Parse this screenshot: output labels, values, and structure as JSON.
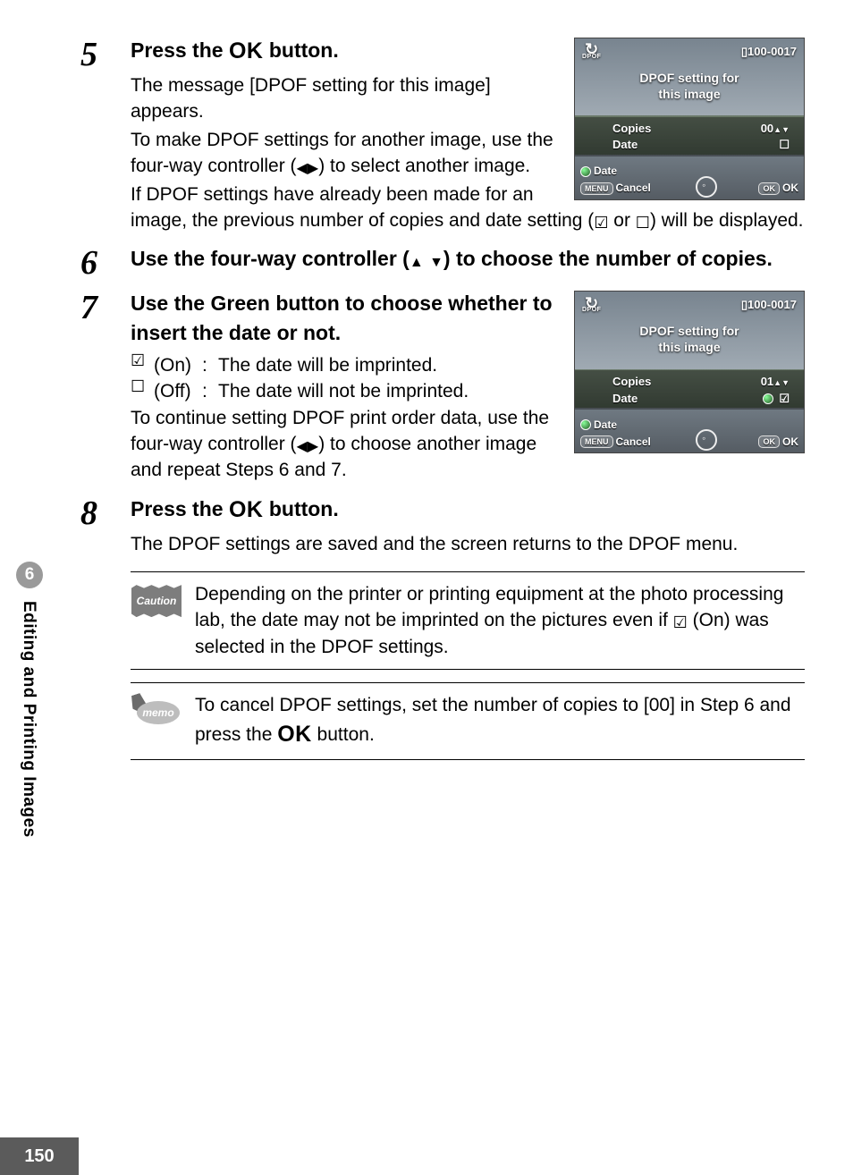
{
  "page_number": "150",
  "chapter": {
    "number": "6",
    "title": "Editing and Printing Images"
  },
  "glyphs": {
    "tri_left": "◀",
    "tri_right": "▶",
    "tri_up": "▲",
    "tri_down": "▼",
    "check_on": "☑",
    "check_off": "☐",
    "card": "▯"
  },
  "steps": {
    "s5": {
      "num": "5",
      "head_a": "Press the ",
      "head_ok": "OK",
      "head_b": " button.",
      "p1": "The message [DPOF setting for this image] appears.",
      "p2a": "To make DPOF settings for another image, use the four-way controller (",
      "p2b": ") to select another image.",
      "p3a": "If DPOF settings have already been made for an image, the previous number of copies and date setting (",
      "p3b": " or ",
      "p3c": ") will be displayed."
    },
    "s6": {
      "num": "6",
      "head_a": "Use the four-way controller (",
      "head_b": ") to choose the number of copies."
    },
    "s7": {
      "num": "7",
      "head": "Use the Green button to choose whether to insert the date or not.",
      "on_term": "(On)",
      "on_desc": "The date will be imprinted.",
      "off_term": "(Off)",
      "off_desc": "The date will not be imprinted.",
      "p1a": "To continue setting DPOF print order data, use the four-way controller (",
      "p1b": ") to choose another image and repeat Steps 6 and 7."
    },
    "s8": {
      "num": "8",
      "head_a": "Press the ",
      "head_ok": "OK",
      "head_b": " button.",
      "p1": "The DPOF settings are saved and the screen returns to the DPOF menu."
    }
  },
  "caution": {
    "label": "Caution",
    "text_a": "Depending on the printer or printing equipment at the photo processing lab, the date may not be imprinted on the pictures even if ",
    "text_b": " (On) was selected in the DPOF settings."
  },
  "memo": {
    "label": "memo",
    "text_a": "To cancel DPOF settings, set the number of copies to [00] in Step 6 and press the ",
    "text_ok": "OK",
    "text_b": " button."
  },
  "lcd": {
    "image_id": "100-0017",
    "dpof_label": "DPOF",
    "title_l1": "DPOF setting for",
    "title_l2": "this image",
    "copies_label": "Copies",
    "date_label": "Date",
    "date_btn": "Date",
    "menu_btn": "MENU",
    "cancel": "Cancel",
    "ok_btn": "OK",
    "ok_text": "OK",
    "shot1": {
      "copies_val": "00",
      "date_val": "☐"
    },
    "shot2": {
      "copies_val": "01",
      "date_val": "☑"
    }
  }
}
